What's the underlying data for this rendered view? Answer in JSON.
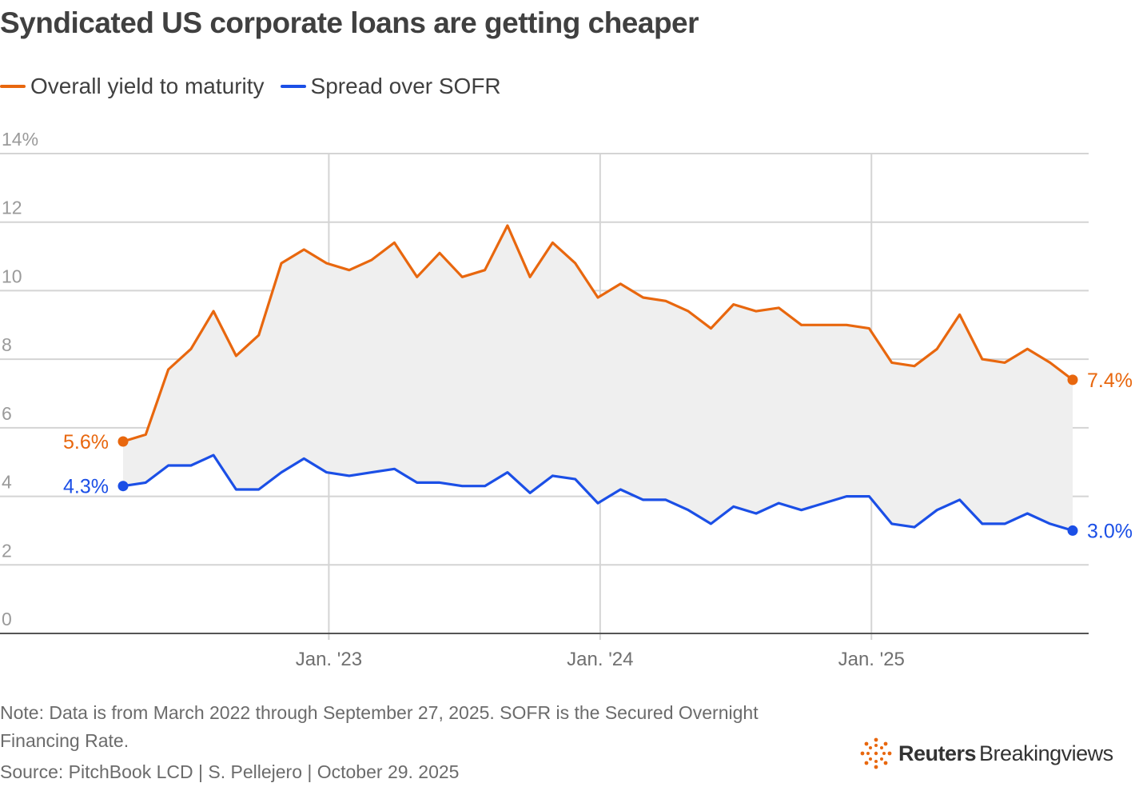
{
  "title": "Syndicated US corporate loans are getting cheaper",
  "legend": [
    {
      "label": "Overall yield to maturity",
      "color": "#e8670e"
    },
    {
      "label": "Spread over SOFR",
      "color": "#1b4fe6"
    }
  ],
  "note": "Note: Data is from March 2022 through September 27, 2025. SOFR is the Secured Overnight Financing Rate.",
  "source": "Source: PitchBook LCD | S. Pellejero | October 29. 2025",
  "brand": {
    "name": "Reuters",
    "sub": "Breakingviews",
    "icon": "reuters-logo-icon"
  },
  "chart_data": {
    "type": "line",
    "title": "Syndicated US corporate loans are getting cheaper",
    "xlabel": "",
    "ylabel": "",
    "ylim": [
      0,
      14
    ],
    "y_ticks": [
      "0",
      "2",
      "4",
      "6",
      "8",
      "10",
      "12",
      "14%"
    ],
    "y_tick_values": [
      0,
      2,
      4,
      6,
      8,
      10,
      12,
      14
    ],
    "x_tick_labels": [
      "Jan. '23",
      "Jan. '24",
      "Jan. '25"
    ],
    "x_tick_index": [
      9.1,
      21.1,
      33.1
    ],
    "x_count": 43,
    "grid": true,
    "shaded_between_series": true,
    "series": [
      {
        "name": "Overall yield to maturity",
        "color": "#e8670e",
        "start_label": "5.6%",
        "end_label": "7.4%",
        "values": [
          5.6,
          5.8,
          7.7,
          8.3,
          9.4,
          8.1,
          8.7,
          10.8,
          11.2,
          10.8,
          10.6,
          10.9,
          11.4,
          10.4,
          11.1,
          10.4,
          10.6,
          11.9,
          10.4,
          11.4,
          10.8,
          9.8,
          10.2,
          9.8,
          9.7,
          9.4,
          8.9,
          9.6,
          9.4,
          9.5,
          9.0,
          9.0,
          9.0,
          8.9,
          7.9,
          7.8,
          8.3,
          9.3,
          8.0,
          7.9,
          8.3,
          7.9,
          7.4
        ]
      },
      {
        "name": "Spread over SOFR",
        "color": "#1b4fe6",
        "start_label": "4.3%",
        "end_label": "3.0%",
        "values": [
          4.3,
          4.4,
          4.9,
          4.9,
          5.2,
          4.2,
          4.2,
          4.7,
          5.1,
          4.7,
          4.6,
          4.7,
          4.8,
          4.4,
          4.4,
          4.3,
          4.3,
          4.7,
          4.1,
          4.6,
          4.5,
          3.8,
          4.2,
          3.9,
          3.9,
          3.6,
          3.2,
          3.7,
          3.5,
          3.8,
          3.6,
          3.8,
          4.0,
          4.0,
          3.2,
          3.1,
          3.6,
          3.9,
          3.2,
          3.2,
          3.5,
          3.2,
          3.0
        ]
      }
    ]
  }
}
